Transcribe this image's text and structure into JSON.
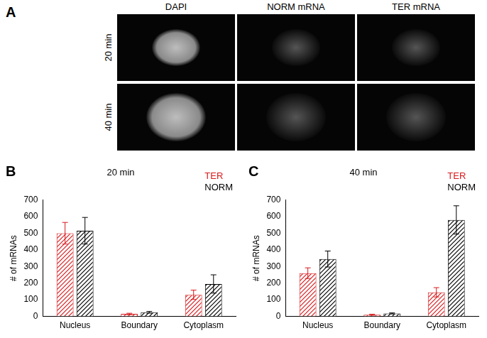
{
  "panel_a": {
    "label": "A",
    "columns": [
      "DAPI",
      "NORM mRNA",
      "TER mRNA"
    ],
    "rows": [
      "20 min",
      "40 min"
    ]
  },
  "chart_data": [
    {
      "panel": "B",
      "type": "bar",
      "title": "20 min",
      "categories": [
        "Nucleus",
        "Boundary",
        "Cytoplasm"
      ],
      "series": [
        {
          "name": "TER",
          "color": "#d7191c",
          "values": [
            500,
            15,
            130
          ],
          "errors": [
            65,
            4,
            28
          ]
        },
        {
          "name": "NORM",
          "color": "#000000",
          "values": [
            515,
            25,
            195
          ],
          "errors": [
            80,
            5,
            55
          ]
        }
      ],
      "y_label": "# of mRNAs",
      "ylim": [
        0,
        700
      ],
      "yticks": [
        0,
        100,
        200,
        300,
        400,
        500,
        600,
        700
      ],
      "grid": false,
      "legend": "top right"
    },
    {
      "panel": "C",
      "type": "bar",
      "title": "40 min",
      "categories": [
        "Nucleus",
        "Boundary",
        "Cytoplasm"
      ],
      "series": [
        {
          "name": "TER",
          "color": "#d7191c",
          "values": [
            260,
            10,
            145
          ],
          "errors": [
            32,
            3,
            28
          ]
        },
        {
          "name": "NORM",
          "color": "#000000",
          "values": [
            345,
            18,
            580
          ],
          "errors": [
            48,
            3,
            85
          ]
        }
      ],
      "y_label": "# of mRNAs",
      "ylim": [
        0,
        700
      ],
      "yticks": [
        0,
        100,
        200,
        300,
        400,
        500,
        600,
        700
      ],
      "grid": false,
      "legend": "top right"
    }
  ]
}
